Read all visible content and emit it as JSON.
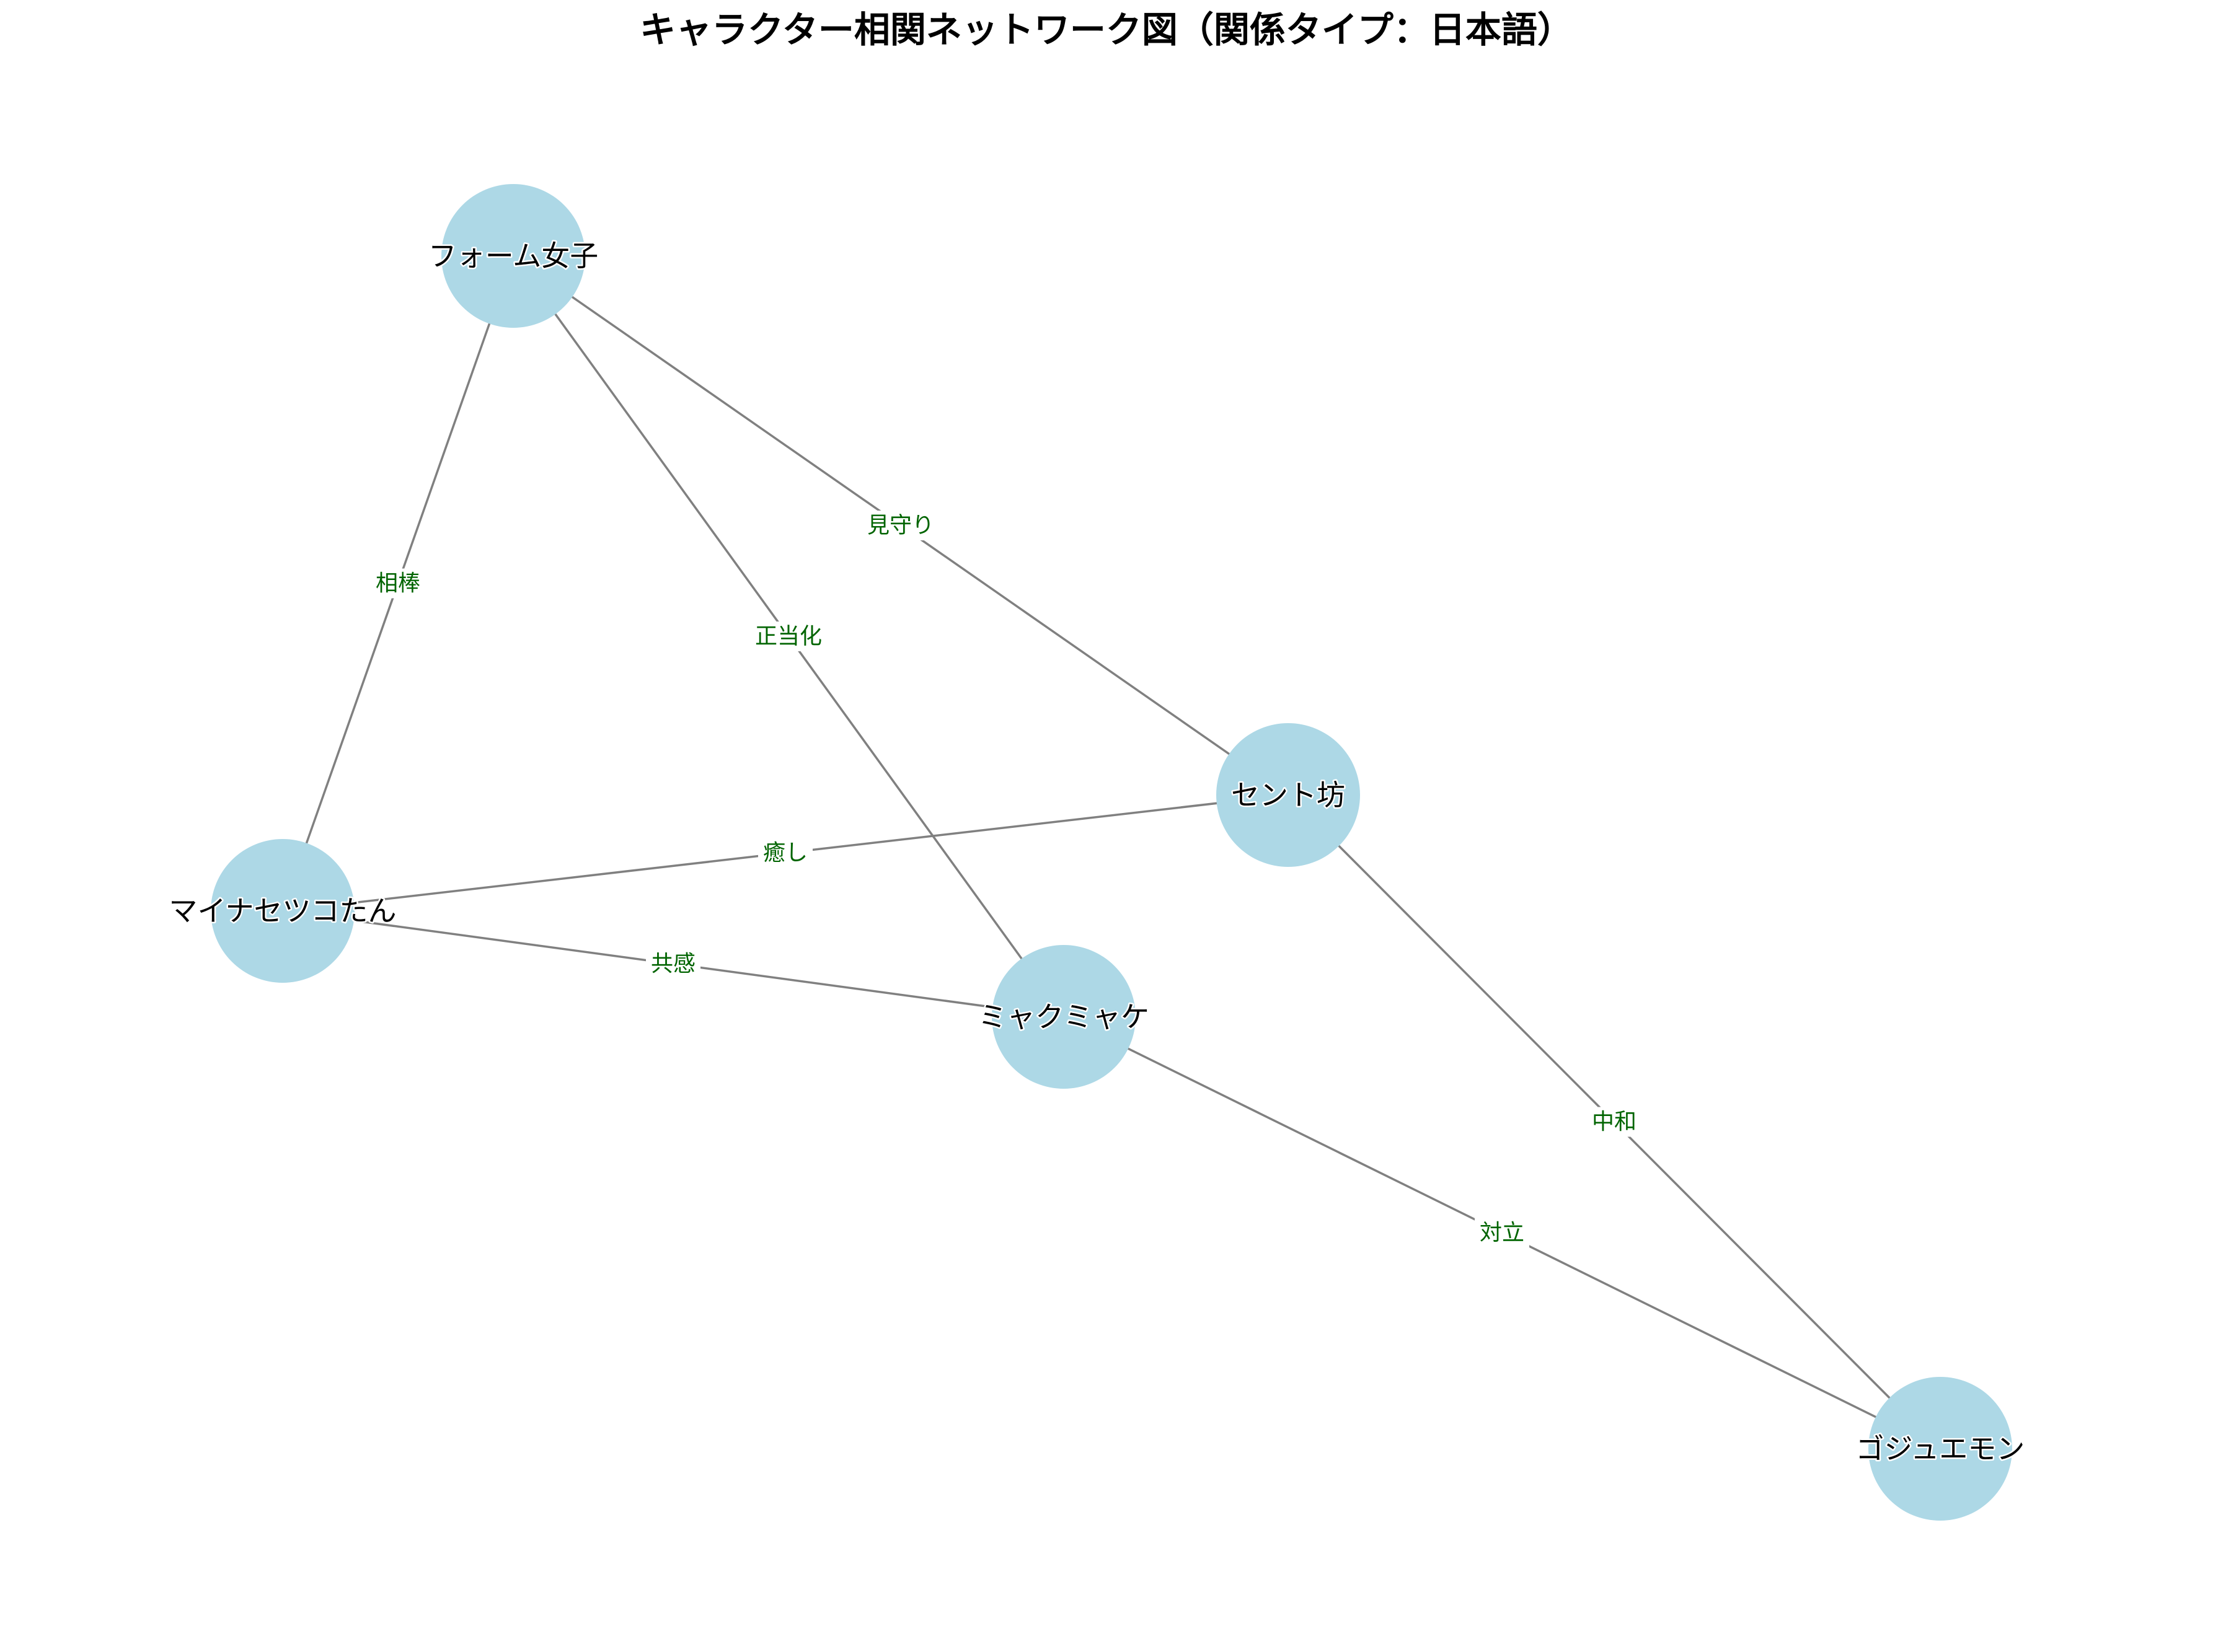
{
  "title": "キャラクター相関ネットワーク図（関係タイプ：日本語）",
  "colors": {
    "node_fill": "#add8e6",
    "edge_stroke": "#808080",
    "edge_label": "#006400",
    "node_label": "#000000"
  },
  "nodes": [
    {
      "id": "form",
      "label": "フォーム女子"
    },
    {
      "id": "cent",
      "label": "セント坊"
    },
    {
      "id": "minus",
      "label": "マイナセツコたん"
    },
    {
      "id": "myaku",
      "label": "ミャクミャケ"
    },
    {
      "id": "gojiu",
      "label": "ゴジュエモン"
    }
  ],
  "edges": [
    {
      "source": "form",
      "target": "minus",
      "label": "相棒"
    },
    {
      "source": "form",
      "target": "myaku",
      "label": "正当化"
    },
    {
      "source": "form",
      "target": "cent",
      "label": "見守り"
    },
    {
      "source": "minus",
      "target": "cent",
      "label": "癒し"
    },
    {
      "source": "minus",
      "target": "myaku",
      "label": "共感"
    },
    {
      "source": "cent",
      "target": "gojiu",
      "label": "中和"
    },
    {
      "source": "myaku",
      "target": "gojiu",
      "label": "対立"
    }
  ]
}
